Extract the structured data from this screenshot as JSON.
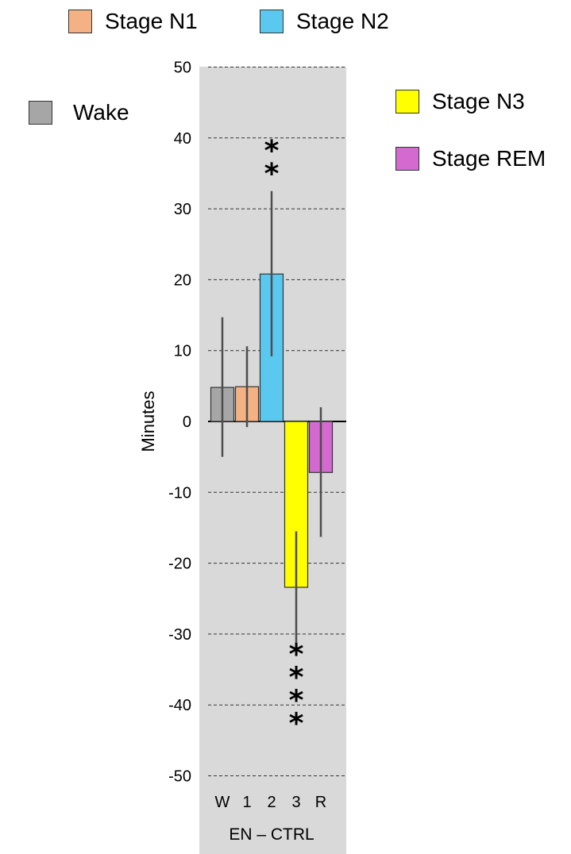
{
  "chart_data": {
    "type": "bar",
    "ylabel": "Minutes",
    "xlabel": "EN – CTRL",
    "ylim": [
      -50,
      50
    ],
    "yticks": [
      50,
      40,
      30,
      20,
      10,
      0,
      -10,
      -20,
      -30,
      -40,
      -50
    ],
    "grid": "dashed horizontal",
    "categories": [
      "W",
      "1",
      "2",
      "3",
      "R"
    ],
    "values": [
      4.8,
      4.9,
      20.8,
      -23.4,
      -7.2
    ],
    "error_low": [
      -5.0,
      -0.8,
      9.2,
      -31.4,
      -16.3
    ],
    "error_high": [
      14.7,
      10.6,
      32.5,
      -15.5,
      2.0
    ],
    "significance": [
      "",
      "",
      "**",
      "****",
      ""
    ],
    "legend": [
      {
        "label": "Wake",
        "color": "#a6a6a6"
      },
      {
        "label": "Stage N1",
        "color": "#f4b183"
      },
      {
        "label": "Stage N2",
        "color": "#5bc8f0"
      },
      {
        "label": "Stage N3",
        "color": "#ffff00"
      },
      {
        "label": "Stage REM",
        "color": "#d46ad0"
      }
    ]
  }
}
